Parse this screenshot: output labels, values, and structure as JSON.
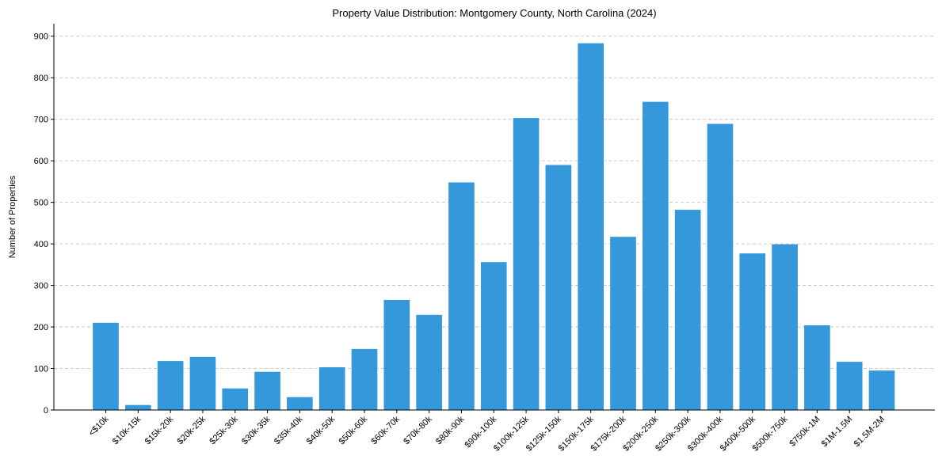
{
  "chart_data": {
    "type": "bar",
    "title": "Property Value Distribution: Montgomery County, North Carolina (2024)",
    "xlabel": "",
    "ylabel": "Number of Properties",
    "ylim": [
      0,
      930
    ],
    "yticks": [
      0,
      100,
      200,
      300,
      400,
      500,
      600,
      700,
      800,
      900
    ],
    "grid": "y-dashed",
    "bar_color": "#3498db",
    "categories": [
      "<$10k",
      "$10k-15k",
      "$15k-20k",
      "$20k-25k",
      "$25k-30k",
      "$30k-35k",
      "$35k-40k",
      "$40k-50k",
      "$50k-60k",
      "$60k-70k",
      "$70k-80k",
      "$80k-90k",
      "$90k-100k",
      "$100k-125k",
      "$125k-150k",
      "$150k-175k",
      "$175k-200k",
      "$200k-250k",
      "$250k-300k",
      "$300k-400k",
      "$400k-500k",
      "$500k-750k",
      "$750k-1M",
      "$1M-1.5M",
      "$1.5M-2M"
    ],
    "values": [
      210,
      12,
      118,
      128,
      52,
      92,
      31,
      103,
      147,
      265,
      229,
      548,
      356,
      703,
      590,
      883,
      417,
      742,
      482,
      689,
      377,
      399,
      204,
      116,
      95
    ]
  }
}
